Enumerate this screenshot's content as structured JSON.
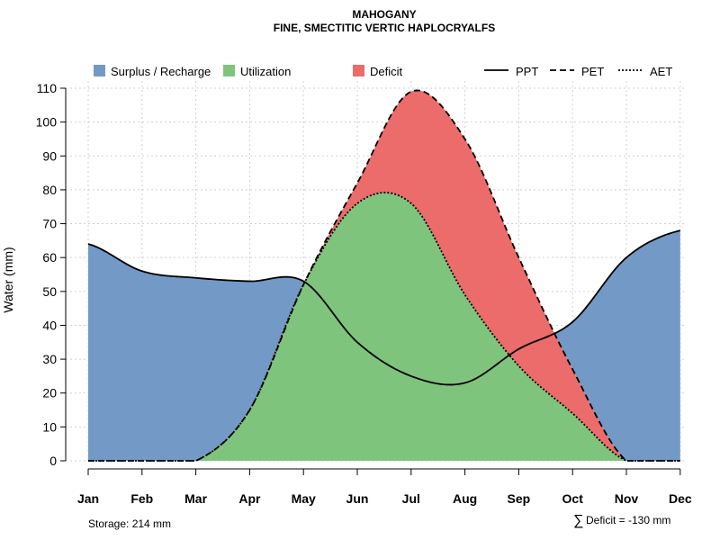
{
  "chart_data": {
    "type": "area",
    "title": "MAHOGANY",
    "subtitle": "FINE, SMECTITIC VERTIC HAPLOCRYALFS",
    "ylabel": "Water (mm)",
    "ylim": [
      0,
      110
    ],
    "yticks": [
      0,
      10,
      20,
      30,
      40,
      50,
      60,
      70,
      80,
      90,
      100,
      110
    ],
    "categories": [
      "Jan",
      "Feb",
      "Mar",
      "Apr",
      "May",
      "Jun",
      "Jul",
      "Aug",
      "Sep",
      "Oct",
      "Nov",
      "Dec"
    ],
    "grid": true,
    "legend_position": "top",
    "legend": {
      "areas": [
        {
          "label": "Surplus / Recharge",
          "color": "#7399c6"
        },
        {
          "label": "Utilization",
          "color": "#7fc47c"
        },
        {
          "label": "Deficit",
          "color": "#ec6b6b"
        }
      ],
      "lines": [
        {
          "label": "PPT",
          "dash": "solid"
        },
        {
          "label": "PET",
          "dash": "dashed"
        },
        {
          "label": "AET",
          "dash": "dotted"
        }
      ]
    },
    "series": [
      {
        "name": "PPT",
        "values": [
          64,
          56,
          54,
          53,
          53,
          35,
          25,
          23,
          33,
          41,
          60,
          68
        ]
      },
      {
        "name": "PET",
        "values": [
          0,
          0,
          0,
          15,
          52,
          82,
          109,
          95,
          60,
          27,
          0,
          0
        ]
      },
      {
        "name": "AET",
        "values": [
          0,
          0,
          0,
          15,
          52,
          76,
          76,
          49,
          28,
          14,
          0,
          0
        ]
      }
    ],
    "annotations": {
      "storage": "Storage: 214 mm",
      "deficit_symbol": "∑",
      "deficit": "Deficit = -130 mm"
    }
  }
}
